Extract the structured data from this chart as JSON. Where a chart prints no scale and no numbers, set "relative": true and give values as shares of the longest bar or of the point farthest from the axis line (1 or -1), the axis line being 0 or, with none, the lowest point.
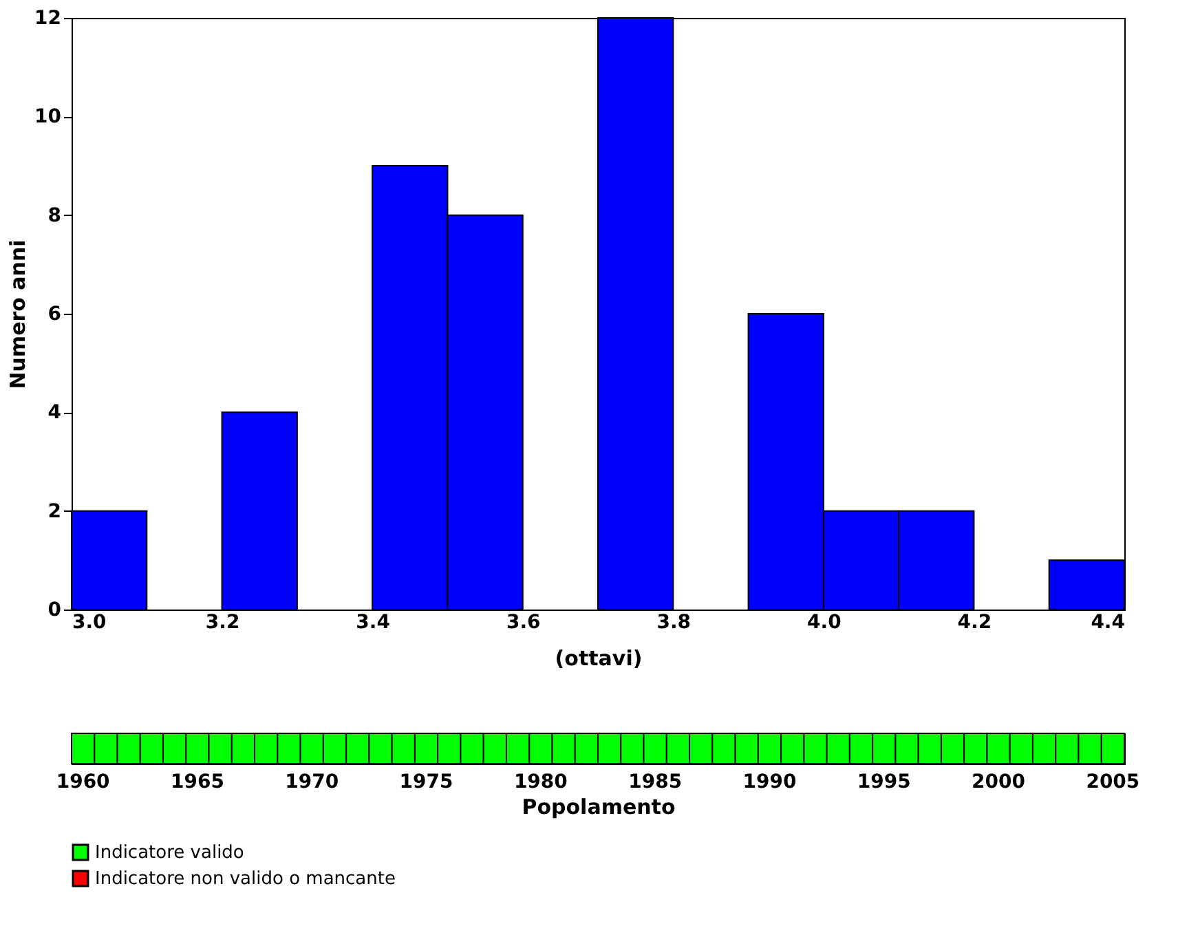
{
  "chart_data": [
    {
      "type": "histogram",
      "xlabel": "(ottavi)",
      "ylabel": "Numero anni",
      "bins": [
        3.0,
        3.1,
        3.2,
        3.3,
        3.4,
        3.5,
        3.6,
        3.7,
        3.8,
        3.9,
        4.0,
        4.1,
        4.2,
        4.3,
        4.4
      ],
      "values": [
        2,
        0,
        4,
        0,
        9,
        8,
        0,
        12,
        0,
        6,
        2,
        2,
        0,
        1
      ],
      "color": "#0000ff",
      "xlim": [
        3.0,
        4.4
      ],
      "xticks": [
        {
          "value": 3.0,
          "label": "3.0"
        },
        {
          "value": 3.2,
          "label": "3.2"
        },
        {
          "value": 3.4,
          "label": "3.4"
        },
        {
          "value": 3.6,
          "label": "3.6"
        },
        {
          "value": 3.8,
          "label": "3.8"
        },
        {
          "value": 4.0,
          "label": "4.0"
        },
        {
          "value": 4.2,
          "label": "4.2"
        },
        {
          "value": 4.4,
          "label": "4.4"
        }
      ],
      "ylim": [
        0,
        12
      ],
      "yticks": [
        0,
        2,
        4,
        6,
        8,
        10,
        12
      ],
      "grid": false
    },
    {
      "type": "bar",
      "xlabel": "Popolamento",
      "relative": true,
      "categories": [
        "1960",
        null,
        null,
        null,
        null,
        "1965",
        null,
        null,
        null,
        null,
        "1970",
        null,
        null,
        null,
        null,
        "1975",
        null,
        null,
        null,
        null,
        "1980",
        null,
        null,
        null,
        null,
        "1985",
        null,
        null,
        null,
        null,
        "1990",
        null,
        null,
        null,
        null,
        "1995",
        null,
        null,
        null,
        null,
        "2000",
        null,
        null,
        null,
        null,
        "2005"
      ],
      "series": [
        {
          "name": "Indicatore valido",
          "color": "#00ff00",
          "values": [
            1,
            1,
            1,
            1,
            1,
            1,
            1,
            1,
            1,
            1,
            1,
            1,
            1,
            1,
            1,
            1,
            1,
            1,
            1,
            1,
            1,
            1,
            1,
            1,
            1,
            1,
            1,
            1,
            1,
            1,
            1,
            1,
            1,
            1,
            1,
            1,
            1,
            1,
            1,
            1,
            1,
            1,
            1,
            1,
            1,
            1
          ]
        },
        {
          "name": "Indicatore non valido o mancante",
          "color": "#ff0000",
          "values": [
            null,
            null,
            null,
            null,
            null,
            null,
            null,
            null,
            null,
            null,
            null,
            null,
            null,
            null,
            null,
            null,
            null,
            null,
            null,
            null,
            null,
            null,
            null,
            null,
            null,
            null,
            null,
            null,
            null,
            null,
            null,
            null,
            null,
            null,
            null,
            null,
            null,
            null,
            null,
            null,
            null,
            null,
            null,
            null,
            null,
            null
          ]
        }
      ],
      "legend": "bottom left"
    }
  ]
}
